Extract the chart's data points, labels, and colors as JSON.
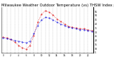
{
  "title": "Milwaukee Weather Outdoor Temperature (vs) THSW Index per Hour (Last 24 Hours)",
  "temp": [
    23,
    22,
    21,
    20,
    19,
    18,
    17,
    19,
    28,
    38,
    45,
    48,
    47,
    45,
    42,
    40,
    38,
    36,
    35,
    34,
    33,
    33,
    32,
    31
  ],
  "thsw": [
    24,
    23,
    21,
    18,
    14,
    11,
    9,
    14,
    26,
    42,
    52,
    56,
    54,
    51,
    46,
    43,
    40,
    37,
    36,
    35,
    34,
    34,
    33,
    32
  ],
  "hours": [
    0,
    1,
    2,
    3,
    4,
    5,
    6,
    7,
    8,
    9,
    10,
    11,
    12,
    13,
    14,
    15,
    16,
    17,
    18,
    19,
    20,
    21,
    22,
    23
  ],
  "temp_color": "#0000dd",
  "thsw_color": "#dd0000",
  "ylim": [
    5,
    60
  ],
  "ytick_vals": [
    5,
    10,
    15,
    20,
    25,
    30,
    35,
    40,
    45,
    50,
    55
  ],
  "ytick_labels": [
    "5",
    "10",
    "15",
    "20",
    "25",
    "30",
    "35",
    "40",
    "45",
    "50",
    "55"
  ],
  "bg_color": "#ffffff",
  "grid_color": "#999999",
  "title_fontsize": 3.8,
  "fig_width": 1.6,
  "fig_height": 0.87,
  "dpi": 100
}
